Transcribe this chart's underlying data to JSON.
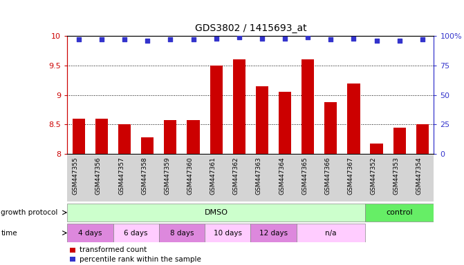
{
  "title": "GDS3802 / 1415693_at",
  "samples": [
    "GSM447355",
    "GSM447356",
    "GSM447357",
    "GSM447358",
    "GSM447359",
    "GSM447360",
    "GSM447361",
    "GSM447362",
    "GSM447363",
    "GSM447364",
    "GSM447365",
    "GSM447366",
    "GSM447367",
    "GSM447352",
    "GSM447353",
    "GSM447354"
  ],
  "bar_values": [
    8.6,
    8.6,
    8.5,
    8.28,
    8.57,
    8.57,
    9.5,
    9.6,
    9.15,
    9.05,
    9.6,
    8.88,
    9.2,
    8.18,
    8.45,
    8.5
  ],
  "percentile_values": [
    97,
    97,
    97,
    96,
    97,
    97,
    98,
    99,
    98,
    98,
    99,
    97,
    98,
    96,
    96,
    97
  ],
  "ylim_left": [
    8.0,
    10.0
  ],
  "ylim_right": [
    0,
    100
  ],
  "yticks_left": [
    8.0,
    8.5,
    9.0,
    9.5,
    10.0
  ],
  "yticks_right": [
    0,
    25,
    50,
    75,
    100
  ],
  "ytick_labels_right": [
    "0",
    "25",
    "50",
    "75",
    "100%"
  ],
  "bar_color": "#cc0000",
  "dot_color": "#3333cc",
  "grid_color": "#000000",
  "bg_color": "#ffffff",
  "label_area_color": "#d4d4d4",
  "growth_protocol_dmso_color": "#ccffcc",
  "growth_protocol_control_color": "#66ee66",
  "time_color": "#dd88dd",
  "time_na_color": "#ffccff",
  "legend_bar_label": "transformed count",
  "legend_dot_label": "percentile rank within the sample",
  "growth_protocol_label": "growth protocol",
  "time_label": "time",
  "dmso_label": "DMSO",
  "control_label": "control",
  "time_periods": [
    "4 days",
    "6 days",
    "8 days",
    "10 days",
    "12 days",
    "n/a"
  ],
  "time_period_spans": [
    2,
    2,
    2,
    2,
    2,
    3
  ],
  "dmso_span": 13,
  "control_span": 3,
  "n_samples": 16
}
